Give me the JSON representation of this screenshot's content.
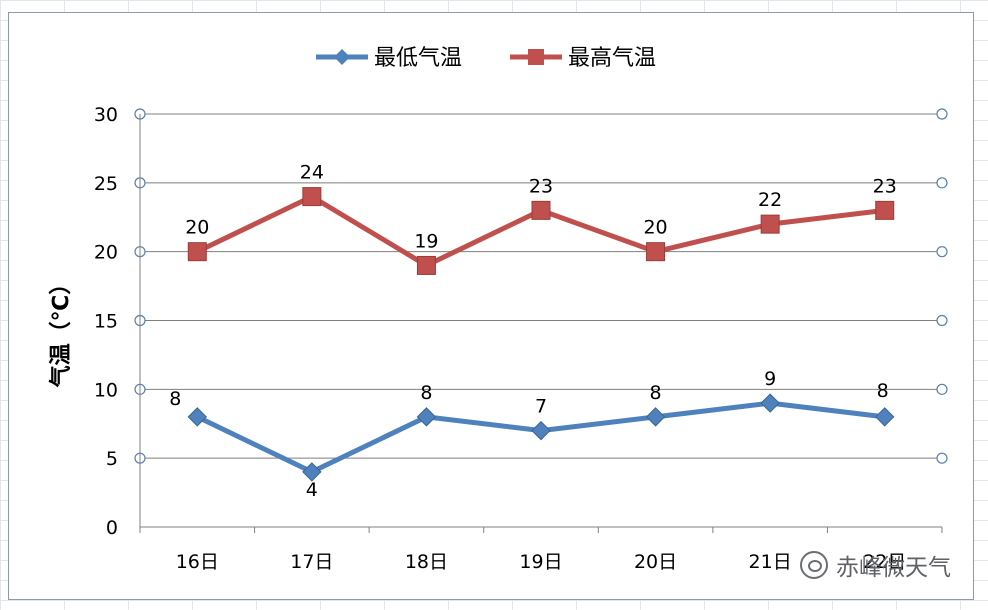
{
  "chart_data": {
    "type": "line",
    "title": "",
    "xlabel": "",
    "ylabel": "气温（℃）",
    "categories": [
      "16日",
      "17日",
      "18日",
      "19日",
      "20日",
      "21日",
      "22日"
    ],
    "ylim": [
      0,
      30
    ],
    "yticks": [
      0,
      5,
      10,
      15,
      20,
      25,
      30
    ],
    "grid": true,
    "legend_position": "top",
    "series": [
      {
        "name": "最低气温",
        "values": [
          8,
          4,
          8,
          7,
          8,
          9,
          8
        ],
        "color": "#4f81bd",
        "marker": "diamond"
      },
      {
        "name": "最高气温",
        "values": [
          20,
          24,
          19,
          23,
          20,
          22,
          23
        ],
        "color": "#c0504d",
        "marker": "square"
      }
    ]
  },
  "watermark": {
    "text": "赤峰微天气",
    "icon": "wechat-icon"
  }
}
